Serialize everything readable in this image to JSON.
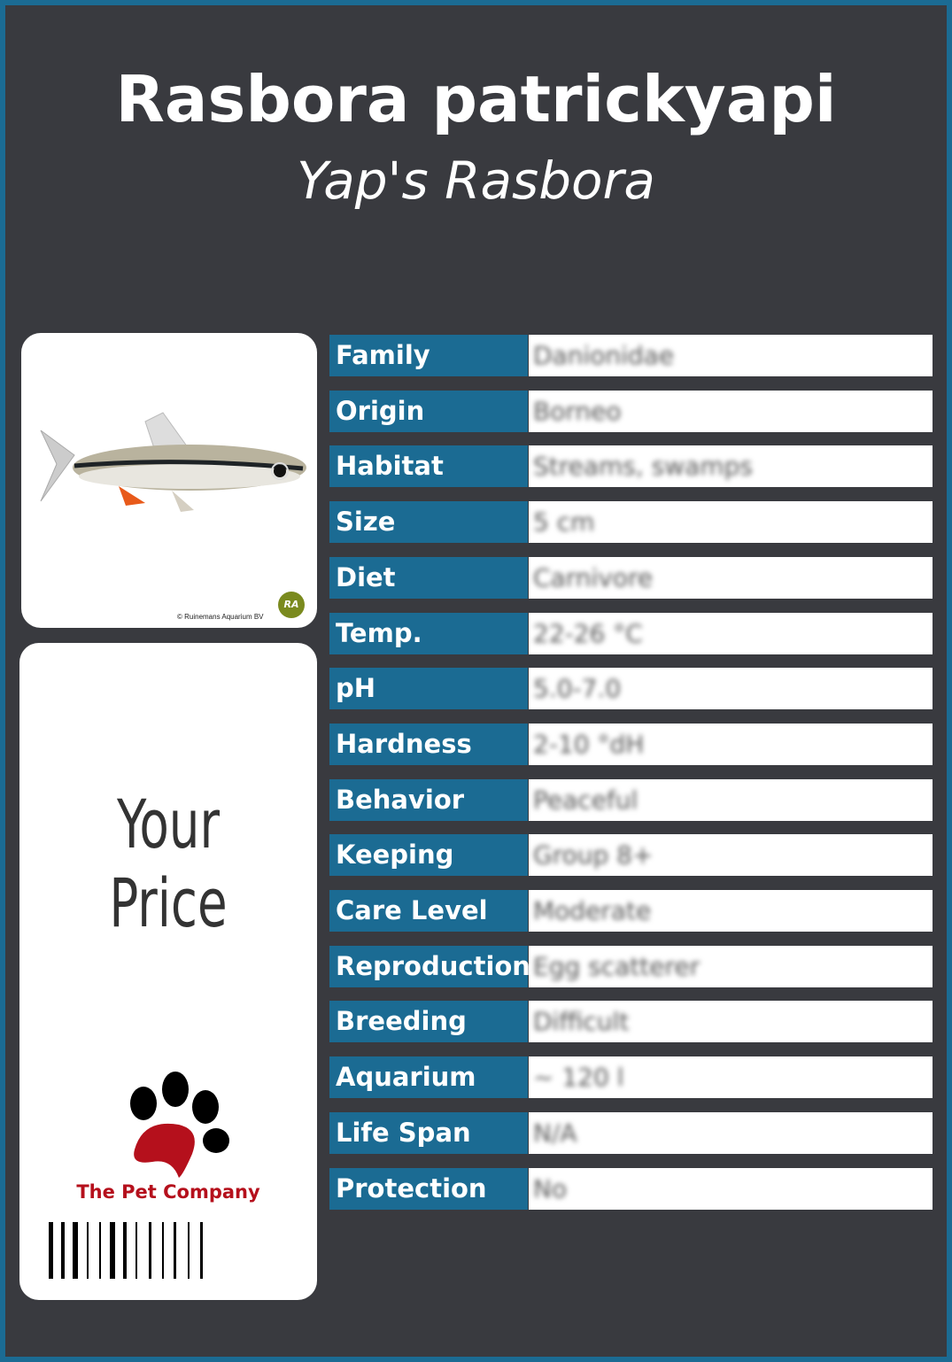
{
  "header": {
    "scientific_name": "Rasbora patrickyapi",
    "common_name": "Yap's Rasbora"
  },
  "photo": {
    "credit": "© Ruinemans Aquarium BV",
    "logo_text": "RA"
  },
  "price": {
    "label": "Your Price"
  },
  "brand": {
    "name": "The Pet Company"
  },
  "colors": {
    "background": "#393a3f",
    "accent": "#1b6b93",
    "brand": "#b5101c"
  },
  "facts": [
    {
      "label": "Family",
      "value": "Danionidae"
    },
    {
      "label": "Origin",
      "value": "Borneo"
    },
    {
      "label": "Habitat",
      "value": "Streams, swamps"
    },
    {
      "label": "Size",
      "value": "5 cm"
    },
    {
      "label": "Diet",
      "value": "Carnivore"
    },
    {
      "label": "Temp.",
      "value": "22-26 °C"
    },
    {
      "label": "pH",
      "value": "5.0-7.0"
    },
    {
      "label": "Hardness",
      "value": "2-10 °dH"
    },
    {
      "label": "Behavior",
      "value": "Peaceful"
    },
    {
      "label": "Keeping",
      "value": "Group 8+"
    },
    {
      "label": "Care Level",
      "value": "Moderate"
    },
    {
      "label": "Reproduction",
      "value": "Egg scatterer"
    },
    {
      "label": "Breeding",
      "value": "Difficult"
    },
    {
      "label": "Aquarium",
      "value": "~ 120 l"
    },
    {
      "label": "Life Span",
      "value": "N/A"
    },
    {
      "label": "Protection",
      "value": "No"
    }
  ]
}
